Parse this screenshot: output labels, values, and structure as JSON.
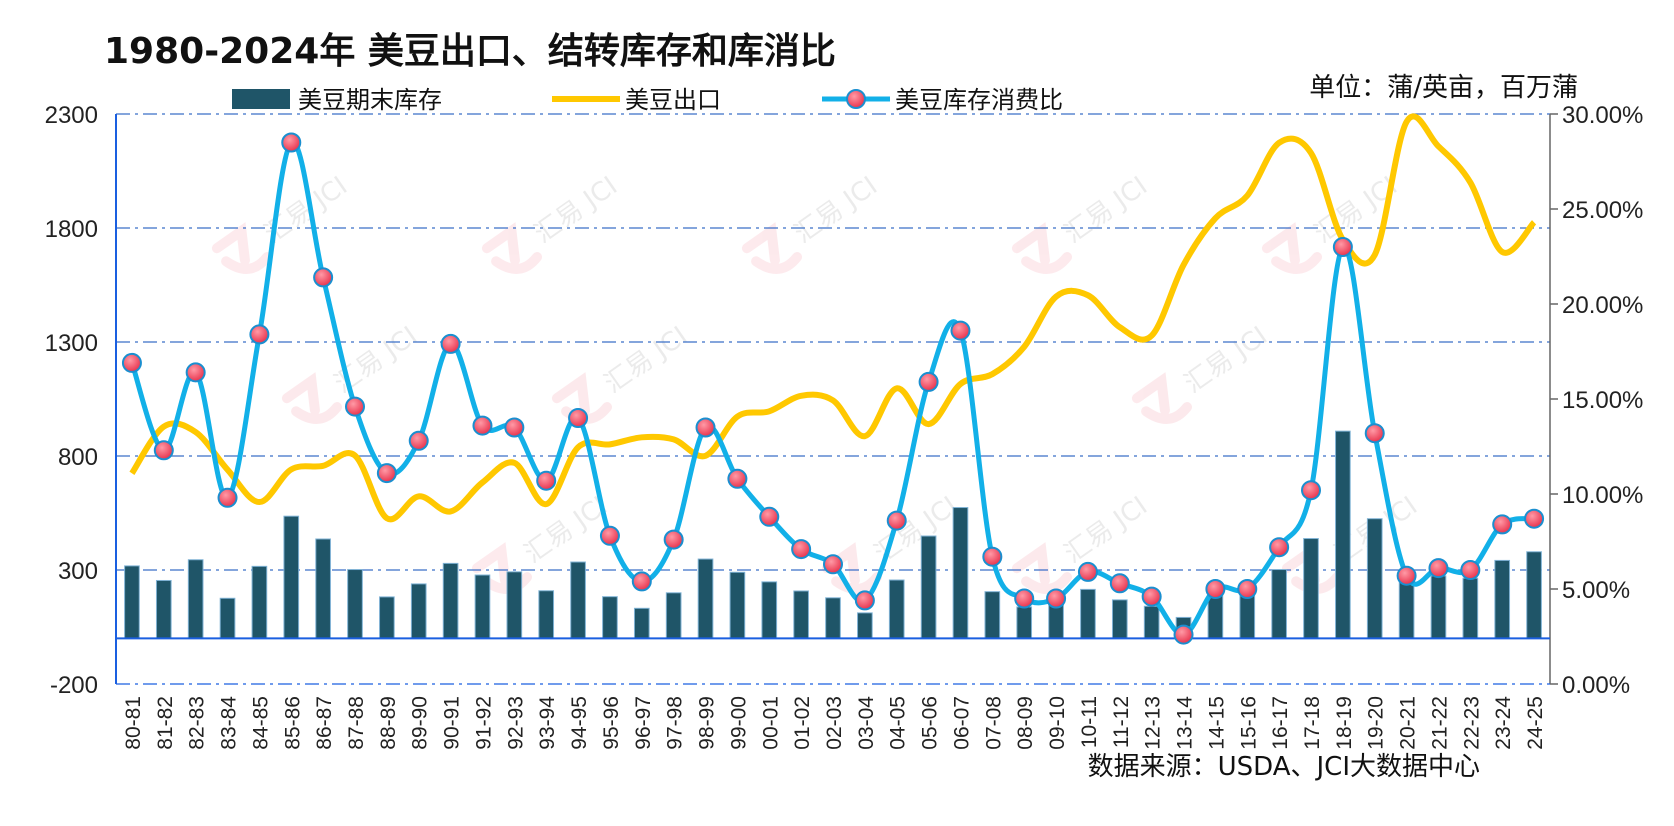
{
  "chart_data": {
    "type": "bar+line",
    "title": "1980-2024年 美豆出口、结转库存和库消比",
    "unit_label": "单位：蒲/英亩，百万蒲",
    "source": "数据来源：USDA、JCI大数据中心",
    "watermark": "汇易 JCI",
    "categories": [
      "80-81",
      "81-82",
      "82-83",
      "83-84",
      "84-85",
      "85-86",
      "86-87",
      "87-88",
      "88-89",
      "89-90",
      "90-91",
      "91-92",
      "92-93",
      "93-94",
      "94-95",
      "95-96",
      "96-97",
      "97-98",
      "98-99",
      "99-00",
      "00-01",
      "01-02",
      "02-03",
      "03-04",
      "04-05",
      "05-06",
      "06-07",
      "07-08",
      "08-09",
      "09-10",
      "10-11",
      "11-12",
      "12-13",
      "13-14",
      "14-15",
      "15-16",
      "16-17",
      "17-18",
      "18-19",
      "19-20",
      "20-21",
      "21-22",
      "22-23",
      "23-24",
      "24-25"
    ],
    "left_axis": {
      "ylim": [
        -200,
        2300
      ],
      "ticks": [
        "-200",
        "300",
        "800",
        "1300",
        "1800",
        "2300"
      ],
      "tick_values": [
        -200,
        300,
        800,
        1300,
        1800,
        2300
      ]
    },
    "right_axis": {
      "ylim": [
        0,
        30
      ],
      "ticks": [
        "0.00%",
        "5.00%",
        "10.00%",
        "15.00%",
        "20.00%",
        "25.00%",
        "30.00%"
      ],
      "tick_values": [
        0,
        5,
        10,
        15,
        20,
        25,
        30
      ]
    },
    "series": [
      {
        "name": "美豆期末库存",
        "type": "bar",
        "axis": "left",
        "color": "#1f5568",
        "values": [
          318,
          254,
          345,
          176,
          316,
          536,
          436,
          302,
          182,
          239,
          329,
          278,
          292,
          209,
          335,
          183,
          132,
          200,
          348,
          290,
          248,
          208,
          178,
          112,
          256,
          449,
          574,
          205,
          138,
          151,
          215,
          169,
          141,
          92,
          191,
          197,
          302,
          438,
          909,
          525,
          257,
          274,
          264,
          342,
          380
        ]
      },
      {
        "name": "美豆出口",
        "type": "line",
        "axis": "left",
        "color": "#ffc800",
        "values": [
          724,
          929,
          905,
          740,
          598,
          741,
          757,
          802,
          527,
          623,
          557,
          684,
          770,
          589,
          838,
          851,
          882,
          873,
          801,
          973,
          996,
          1064,
          1044,
          887,
          1097,
          940,
          1116,
          1159,
          1279,
          1499,
          1505,
          1365,
          1328,
          1638,
          1843,
          1942,
          2174,
          2129,
          1748,
          1682,
          2266,
          2158,
          2000,
          1695,
          1825
        ]
      },
      {
        "name": "美豆库存消费比",
        "type": "line-markers",
        "axis": "right",
        "color": "#12b0e8",
        "marker_color": "#e8344e",
        "values": [
          16.9,
          12.3,
          16.4,
          9.8,
          18.4,
          28.5,
          21.4,
          14.6,
          11.1,
          12.8,
          17.9,
          13.6,
          13.5,
          10.7,
          14.0,
          7.8,
          5.4,
          7.6,
          13.5,
          10.8,
          8.8,
          7.1,
          6.3,
          4.4,
          8.6,
          15.9,
          18.6,
          6.7,
          4.5,
          4.5,
          5.9,
          5.3,
          4.6,
          2.6,
          5.0,
          5.0,
          7.2,
          10.2,
          23.0,
          13.2,
          5.7,
          6.1,
          6.0,
          8.4,
          8.7
        ]
      }
    ],
    "legend": [
      {
        "label": "美豆期末库存",
        "kind": "bar"
      },
      {
        "label": "美豆出口",
        "kind": "line"
      },
      {
        "label": "美豆库存消费比",
        "kind": "line-marker"
      }
    ],
    "grid": "dash-dot horizontal"
  }
}
